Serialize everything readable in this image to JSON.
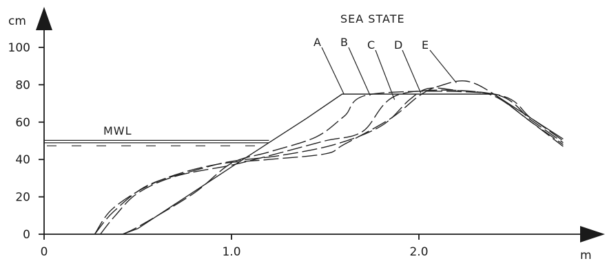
{
  "chart_data": {
    "type": "line",
    "title": "SEA STATE",
    "xlabel": "m",
    "ylabel": "cm",
    "xlim": [
      0,
      2.9
    ],
    "ylim": [
      0,
      110
    ],
    "x_ticks": [
      {
        "value": 0,
        "label": "0"
      },
      {
        "value": 1.0,
        "label": "1.0"
      },
      {
        "value": 2.0,
        "label": "2.0"
      }
    ],
    "y_ticks": [
      {
        "value": 0,
        "label": "0"
      },
      {
        "value": 20,
        "label": "20"
      },
      {
        "value": 40,
        "label": "40"
      },
      {
        "value": 60,
        "label": "60"
      },
      {
        "value": 80,
        "label": "80"
      },
      {
        "value": 100,
        "label": "100"
      }
    ],
    "mwl": {
      "label": "MWL",
      "level": 49.5,
      "x": [
        0,
        1.2
      ]
    },
    "series": [
      {
        "name": "A",
        "style": "solid",
        "points": [
          [
            0.42,
            0
          ],
          [
            0.5,
            3
          ],
          [
            1.0,
            36
          ],
          [
            1.2,
            49
          ],
          [
            1.4,
            62
          ],
          [
            1.59,
            75
          ],
          [
            2.4,
            75
          ],
          [
            2.6,
            62
          ],
          [
            2.77,
            51
          ]
        ]
      },
      {
        "name": "B",
        "style": "dashed",
        "points": [
          [
            0.42,
            0
          ],
          [
            0.52,
            5
          ],
          [
            0.8,
            22
          ],
          [
            1.0,
            38
          ],
          [
            1.2,
            44
          ],
          [
            1.45,
            52
          ],
          [
            1.6,
            63
          ],
          [
            1.75,
            75
          ],
          [
            2.4,
            75
          ],
          [
            2.6,
            62
          ],
          [
            2.77,
            50
          ]
        ]
      },
      {
        "name": "C",
        "style": "dashed",
        "points": [
          [
            0.3,
            0
          ],
          [
            0.38,
            10
          ],
          [
            0.5,
            22
          ],
          [
            0.7,
            31
          ],
          [
            1.0,
            37
          ],
          [
            1.2,
            42
          ],
          [
            1.5,
            50
          ],
          [
            1.7,
            55
          ],
          [
            1.9,
            75
          ],
          [
            2.4,
            75
          ],
          [
            2.6,
            61
          ],
          [
            2.77,
            49
          ]
        ]
      },
      {
        "name": "D",
        "style": "dashed",
        "points": [
          [
            0.27,
            0
          ],
          [
            0.37,
            12
          ],
          [
            0.55,
            26
          ],
          [
            0.8,
            34
          ],
          [
            1.0,
            39
          ],
          [
            1.25,
            42
          ],
          [
            1.55,
            48
          ],
          [
            1.8,
            58
          ],
          [
            1.95,
            72
          ],
          [
            2.05,
            78
          ],
          [
            2.2,
            77
          ],
          [
            2.4,
            74
          ],
          [
            2.6,
            60
          ],
          [
            2.77,
            48
          ]
        ]
      },
      {
        "name": "E",
        "style": "dashed",
        "points": [
          [
            0.27,
            0
          ],
          [
            0.37,
            14
          ],
          [
            0.6,
            28
          ],
          [
            0.9,
            37
          ],
          [
            1.2,
            40
          ],
          [
            1.5,
            43
          ],
          [
            1.6,
            48
          ],
          [
            1.85,
            62
          ],
          [
            2.0,
            74
          ],
          [
            2.1,
            79
          ],
          [
            2.25,
            82
          ],
          [
            2.4,
            75
          ],
          [
            2.6,
            60
          ],
          [
            2.77,
            47
          ]
        ]
      }
    ]
  }
}
